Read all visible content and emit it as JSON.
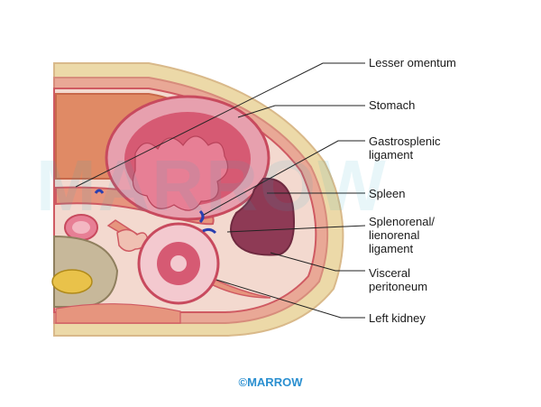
{
  "labels": {
    "lesser_omentum": "Lesser omentum",
    "stomach": "Stomach",
    "gastrosplenic_1": "Gastrosplenic",
    "gastrosplenic_2": "ligament",
    "spleen": "Spleen",
    "splenorenal_1": "Splenorenal/",
    "splenorenal_2": "lienorenal",
    "splenorenal_3": "ligament",
    "visceral_1": "Visceral",
    "visceral_2": "peritoneum",
    "left_kidney": "Left kidney"
  },
  "watermark": "MARROW",
  "brand": "©MARROW",
  "colors": {
    "fat": "#ecd9a8",
    "muscle": "#e19a8a",
    "peritoneum": "#cf5a62",
    "stomach": "#d65a73",
    "spleen": "#8e3a55",
    "liver": "#e08a65",
    "ligament_marker": "#2a3fb0",
    "brand": "#2a8fd0"
  }
}
